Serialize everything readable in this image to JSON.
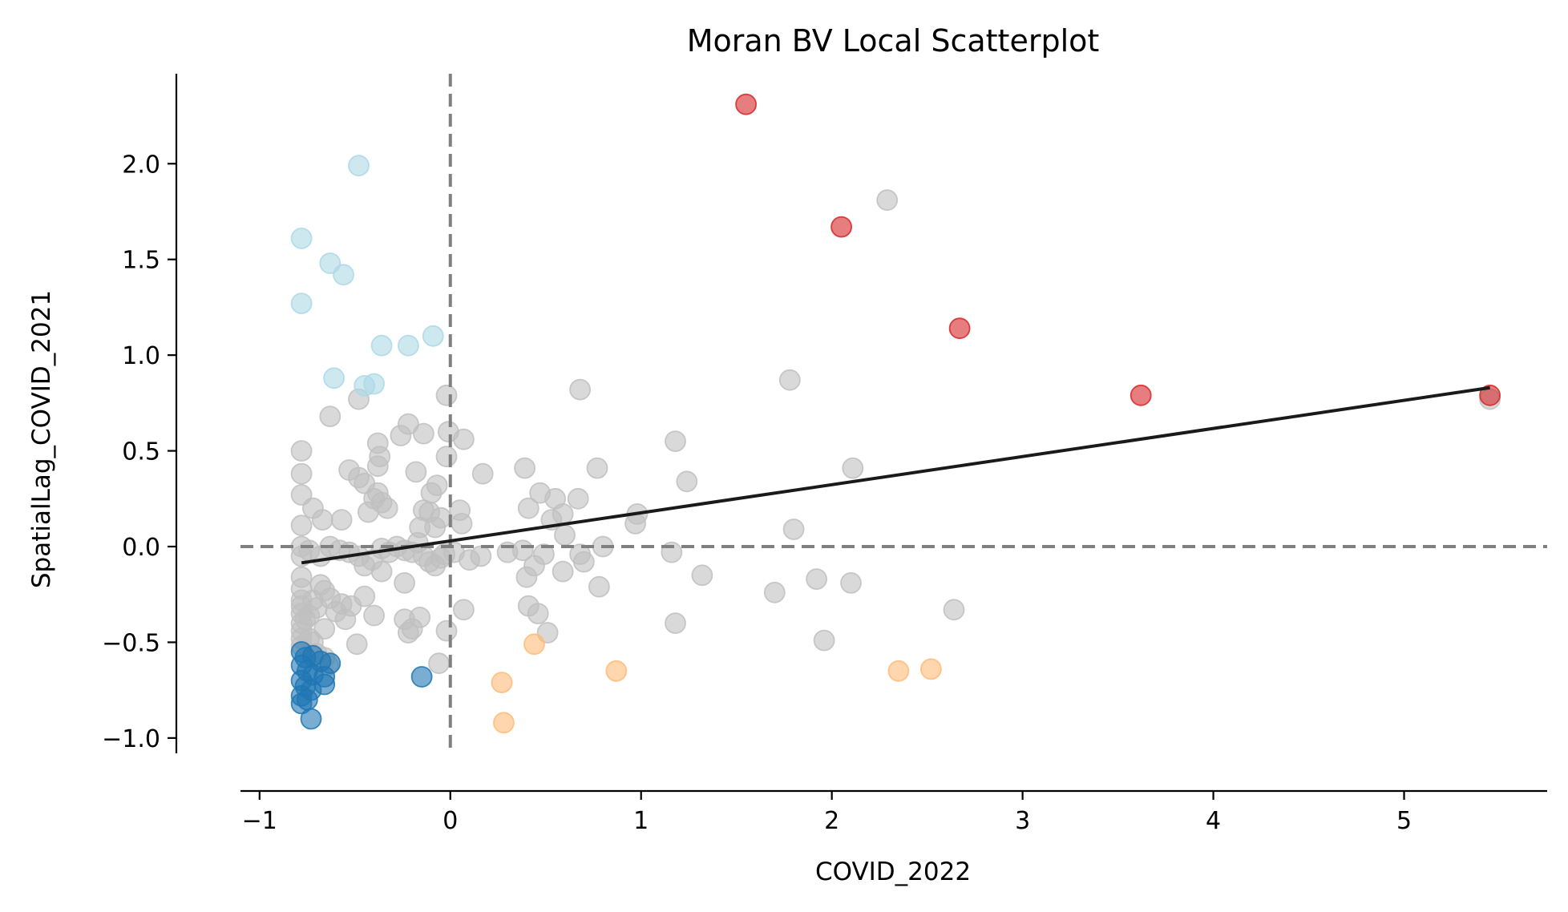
{
  "chart_data": {
    "type": "scatter",
    "title": "Moran BV Local Scatterplot",
    "xlabel": "COVID_2022",
    "ylabel": "SpatialLag_COVID_2021",
    "xlim": [
      -1.1,
      5.75
    ],
    "ylim": [
      -1.08,
      2.47
    ],
    "x_ticks": [
      -1,
      0,
      1,
      2,
      3,
      4,
      5
    ],
    "x_tick_labels": [
      "−1",
      "0",
      "1",
      "2",
      "3",
      "4",
      "5"
    ],
    "y_ticks": [
      -1.0,
      -0.5,
      0.0,
      0.5,
      1.0,
      1.5,
      2.0
    ],
    "y_tick_labels": [
      "−1.0",
      "−0.5",
      "0.0",
      "0.5",
      "1.0",
      "1.5",
      "2.0"
    ],
    "grid": false,
    "reference_lines": {
      "vertical_x": 0,
      "horizontal_y": 0,
      "color": "#808080",
      "style": "dashed"
    },
    "fit_line": {
      "x": [
        -0.78,
        5.45
      ],
      "y": [
        -0.085,
        0.83
      ],
      "color": "#1a1a1a"
    },
    "series": [
      {
        "color": "#d62728",
        "points": [
          [
            1.55,
            2.31
          ],
          [
            2.05,
            1.67
          ],
          [
            2.67,
            1.14
          ],
          [
            3.62,
            0.79
          ],
          [
            5.45,
            0.79
          ]
        ]
      },
      {
        "color": "#add8e6",
        "points": [
          [
            -0.48,
            1.99
          ],
          [
            -0.78,
            1.61
          ],
          [
            -0.63,
            1.48
          ],
          [
            -0.56,
            1.42
          ],
          [
            -0.78,
            1.27
          ],
          [
            -0.36,
            1.05
          ],
          [
            -0.22,
            1.05
          ],
          [
            -0.09,
            1.1
          ],
          [
            -0.61,
            0.88
          ],
          [
            -0.45,
            0.84
          ],
          [
            -0.4,
            0.85
          ]
        ]
      },
      {
        "color": "#1f77b4",
        "points": [
          [
            -0.78,
            -0.55
          ],
          [
            -0.76,
            -0.58
          ],
          [
            -0.72,
            -0.57
          ],
          [
            -0.68,
            -0.6
          ],
          [
            -0.78,
            -0.62
          ],
          [
            -0.75,
            -0.65
          ],
          [
            -0.72,
            -0.67
          ],
          [
            -0.78,
            -0.7
          ],
          [
            -0.76,
            -0.73
          ],
          [
            -0.73,
            -0.75
          ],
          [
            -0.78,
            -0.78
          ],
          [
            -0.75,
            -0.8
          ],
          [
            -0.78,
            -0.82
          ],
          [
            -0.73,
            -0.9
          ],
          [
            -0.66,
            -0.68
          ],
          [
            -0.66,
            -0.72
          ],
          [
            -0.63,
            -0.61
          ],
          [
            -0.15,
            -0.68
          ]
        ]
      },
      {
        "color": "#ffbb78",
        "points": [
          [
            0.44,
            -0.51
          ],
          [
            0.27,
            -0.71
          ],
          [
            0.28,
            -0.92
          ],
          [
            0.87,
            -0.65
          ],
          [
            2.35,
            -0.65
          ],
          [
            2.52,
            -0.64
          ]
        ]
      },
      {
        "color": "#bfbfbf",
        "points": [
          [
            2.29,
            1.81
          ],
          [
            1.78,
            0.87
          ],
          [
            0.68,
            0.82
          ],
          [
            -0.02,
            0.79
          ],
          [
            5.45,
            0.77
          ],
          [
            -0.63,
            0.68
          ],
          [
            -0.48,
            0.77
          ],
          [
            -0.22,
            0.64
          ],
          [
            -0.14,
            0.59
          ],
          [
            -0.26,
            0.58
          ],
          [
            -0.38,
            0.54
          ],
          [
            -0.37,
            0.47
          ],
          [
            -0.38,
            0.42
          ],
          [
            0.07,
            0.56
          ],
          [
            -0.01,
            0.6
          ],
          [
            1.18,
            0.55
          ],
          [
            2.11,
            0.41
          ],
          [
            1.24,
            0.34
          ],
          [
            0.77,
            0.41
          ],
          [
            0.39,
            0.41
          ],
          [
            0.17,
            0.38
          ],
          [
            -0.78,
            0.5
          ],
          [
            -0.78,
            0.38
          ],
          [
            -0.78,
            0.27
          ],
          [
            -0.72,
            0.2
          ],
          [
            -0.67,
            0.14
          ],
          [
            -0.57,
            0.14
          ],
          [
            -0.53,
            0.4
          ],
          [
            -0.48,
            0.36
          ],
          [
            -0.45,
            0.33
          ],
          [
            -0.38,
            0.28
          ],
          [
            -0.36,
            0.23
          ],
          [
            -0.33,
            0.2
          ],
          [
            -0.4,
            0.25
          ],
          [
            -0.43,
            0.18
          ],
          [
            -0.18,
            0.39
          ],
          [
            -0.1,
            0.28
          ],
          [
            -0.07,
            0.32
          ],
          [
            -0.02,
            0.47
          ],
          [
            0.05,
            0.19
          ],
          [
            0.06,
            0.12
          ],
          [
            -0.05,
            0.15
          ],
          [
            -0.08,
            0.1
          ],
          [
            -0.11,
            0.18
          ],
          [
            -0.14,
            0.19
          ],
          [
            -0.16,
            0.1
          ],
          [
            0.47,
            0.28
          ],
          [
            0.55,
            0.25
          ],
          [
            0.59,
            0.17
          ],
          [
            0.53,
            0.14
          ],
          [
            0.67,
            0.25
          ],
          [
            0.41,
            0.2
          ],
          [
            0.98,
            0.17
          ],
          [
            1.8,
            0.09
          ],
          [
            0.97,
            0.12
          ],
          [
            -0.78,
            0.11
          ],
          [
            -0.78,
            0.0
          ],
          [
            -0.78,
            -0.05
          ],
          [
            -0.74,
            -0.02
          ],
          [
            -0.68,
            -0.05
          ],
          [
            -0.63,
            0.0
          ],
          [
            -0.58,
            -0.02
          ],
          [
            -0.53,
            -0.03
          ],
          [
            -0.48,
            -0.05
          ],
          [
            -0.45,
            -0.1
          ],
          [
            -0.41,
            -0.07
          ],
          [
            -0.36,
            -0.01
          ],
          [
            -0.32,
            -0.03
          ],
          [
            -0.28,
            0.0
          ],
          [
            -0.24,
            -0.02
          ],
          [
            -0.2,
            -0.03
          ],
          [
            -0.17,
            0.02
          ],
          [
            -0.14,
            -0.05
          ],
          [
            -0.11,
            -0.08
          ],
          [
            -0.08,
            -0.1
          ],
          [
            -0.05,
            -0.06
          ],
          [
            -0.03,
            -0.04
          ],
          [
            0.02,
            -0.03
          ],
          [
            0.1,
            -0.07
          ],
          [
            0.16,
            -0.05
          ],
          [
            0.3,
            -0.03
          ],
          [
            0.38,
            -0.02
          ],
          [
            0.4,
            -0.16
          ],
          [
            0.44,
            -0.1
          ],
          [
            0.49,
            -0.04
          ],
          [
            0.59,
            -0.13
          ],
          [
            0.6,
            0.06
          ],
          [
            0.68,
            -0.04
          ],
          [
            0.7,
            -0.08
          ],
          [
            0.78,
            -0.21
          ],
          [
            0.8,
            0.0
          ],
          [
            1.16,
            -0.03
          ],
          [
            1.32,
            -0.15
          ],
          [
            1.7,
            -0.24
          ],
          [
            1.92,
            -0.17
          ],
          [
            2.1,
            -0.19
          ],
          [
            2.64,
            -0.33
          ],
          [
            1.96,
            -0.49
          ],
          [
            1.18,
            -0.4
          ],
          [
            0.51,
            -0.45
          ],
          [
            0.41,
            -0.31
          ],
          [
            0.46,
            -0.35
          ],
          [
            0.07,
            -0.33
          ],
          [
            -0.02,
            -0.44
          ],
          [
            -0.06,
            -0.61
          ],
          [
            -0.16,
            -0.37
          ],
          [
            -0.22,
            -0.45
          ],
          [
            -0.2,
            -0.43
          ],
          [
            -0.24,
            -0.38
          ],
          [
            -0.24,
            -0.19
          ],
          [
            -0.36,
            -0.13
          ],
          [
            -0.4,
            -0.36
          ],
          [
            -0.45,
            -0.26
          ],
          [
            -0.49,
            -0.51
          ],
          [
            -0.52,
            -0.31
          ],
          [
            -0.55,
            -0.38
          ],
          [
            -0.57,
            -0.3
          ],
          [
            -0.6,
            -0.34
          ],
          [
            -0.63,
            -0.27
          ],
          [
            -0.66,
            -0.23
          ],
          [
            -0.66,
            -0.43
          ],
          [
            -0.68,
            -0.2
          ],
          [
            -0.7,
            -0.32
          ],
          [
            -0.72,
            -0.28
          ],
          [
            -0.74,
            -0.36
          ],
          [
            -0.76,
            -0.38
          ],
          [
            -0.78,
            -0.16
          ],
          [
            -0.78,
            -0.22
          ],
          [
            -0.78,
            -0.28
          ],
          [
            -0.78,
            -0.31
          ],
          [
            -0.78,
            -0.35
          ],
          [
            -0.78,
            -0.4
          ],
          [
            -0.78,
            -0.44
          ],
          [
            -0.78,
            -0.48
          ],
          [
            -0.78,
            -0.52
          ],
          [
            -0.74,
            -0.48
          ],
          [
            -0.72,
            -0.5
          ],
          [
            -0.7,
            -0.56
          ],
          [
            -0.66,
            -0.58
          ],
          [
            -0.64,
            -0.62
          ]
        ]
      }
    ]
  }
}
